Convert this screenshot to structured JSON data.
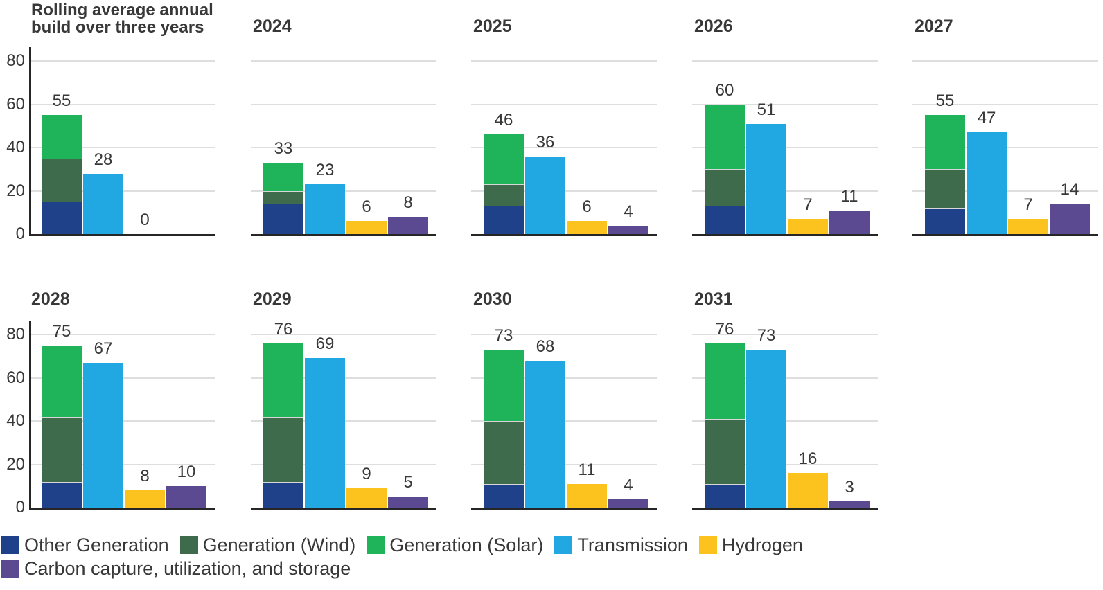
{
  "chart_data": {
    "type": "bar",
    "subtype": "small-multiples, grouped with one stacked bar per panel",
    "title": "Rolling average annual build over three years",
    "ylabel": "",
    "xlabel": "",
    "ylim": [
      0,
      88
    ],
    "yticks": [
      0,
      20,
      40,
      60,
      80
    ],
    "grid": true,
    "legend_position": "bottom",
    "stack_order": [
      "other_generation",
      "generation_wind",
      "generation_solar"
    ],
    "colors": {
      "other_generation": "#1E4189",
      "generation_wind": "#3E6B4C",
      "generation_solar": "#1FB45A",
      "transmission": "#21A8E3",
      "hydrogen": "#FCC21D",
      "carbon_capture": "#5B4A92",
      "axis": "#262626",
      "gridline": "#DEDEDE",
      "text": "#383838"
    },
    "panels": [
      {
        "title": "Rolling average annual build over three years",
        "axis_labels": true,
        "row": 0,
        "col": 0,
        "stack": {
          "other_generation": 15,
          "generation_wind": 20,
          "generation_solar": 20
        },
        "stack_total": 55,
        "stack_label": "55",
        "transmission": 28,
        "hydrogen": 0,
        "carbon_capture": null
      },
      {
        "title": "2024",
        "axis_labels": false,
        "row": 0,
        "col": 1,
        "stack": {
          "other_generation": 14,
          "generation_wind": 6,
          "generation_solar": 13
        },
        "stack_total": 33,
        "stack_label": "33",
        "transmission": 23,
        "hydrogen": 6,
        "carbon_capture": 8
      },
      {
        "title": "2025",
        "axis_labels": false,
        "row": 0,
        "col": 2,
        "stack": {
          "other_generation": 13,
          "generation_wind": 10,
          "generation_solar": 23
        },
        "stack_total": 46,
        "stack_label": "46",
        "transmission": 36,
        "hydrogen": 6,
        "carbon_capture": 4
      },
      {
        "title": "2026",
        "axis_labels": false,
        "row": 0,
        "col": 3,
        "stack": {
          "other_generation": 13,
          "generation_wind": 17,
          "generation_solar": 30
        },
        "stack_total": 60,
        "stack_label": "60",
        "transmission": 51,
        "hydrogen": 7,
        "carbon_capture": 11
      },
      {
        "title": "2027",
        "axis_labels": false,
        "row": 0,
        "col": 4,
        "stack": {
          "other_generation": 12,
          "generation_wind": 18,
          "generation_solar": 25
        },
        "stack_total": 55,
        "stack_label": "55",
        "transmission": 47,
        "hydrogen": 7,
        "carbon_capture": 14
      },
      {
        "title": "2028",
        "axis_labels": true,
        "row": 1,
        "col": 0,
        "stack": {
          "other_generation": 12,
          "generation_wind": 30,
          "generation_solar": 33
        },
        "stack_total": 75,
        "stack_label": "75",
        "transmission": 67,
        "hydrogen": 8,
        "carbon_capture": 10
      },
      {
        "title": "2029",
        "axis_labels": false,
        "row": 1,
        "col": 1,
        "stack": {
          "other_generation": 12,
          "generation_wind": 30,
          "generation_solar": 34
        },
        "stack_total": 76,
        "stack_label": "76",
        "transmission": 69,
        "hydrogen": 9,
        "carbon_capture": 5
      },
      {
        "title": "2030",
        "axis_labels": false,
        "row": 1,
        "col": 2,
        "stack": {
          "other_generation": 11,
          "generation_wind": 29,
          "generation_solar": 33
        },
        "stack_total": 73,
        "stack_label": "73",
        "transmission": 68,
        "hydrogen": 11,
        "carbon_capture": 4
      },
      {
        "title": "2031",
        "axis_labels": false,
        "row": 1,
        "col": 3,
        "stack": {
          "other_generation": 11,
          "generation_wind": 30,
          "generation_solar": 35
        },
        "stack_total": 76,
        "stack_label": "76",
        "transmission": 73,
        "hydrogen": 16,
        "carbon_capture": 3
      }
    ],
    "legend": [
      {
        "key": "other_generation",
        "label": "Other Generation"
      },
      {
        "key": "generation_wind",
        "label": "Generation (Wind)"
      },
      {
        "key": "generation_solar",
        "label": "Generation (Solar)"
      },
      {
        "key": "transmission",
        "label": "Transmission"
      },
      {
        "key": "hydrogen",
        "label": "Hydrogen"
      },
      {
        "key": "carbon_capture",
        "label": "Carbon capture, utilization, and storage"
      }
    ]
  }
}
